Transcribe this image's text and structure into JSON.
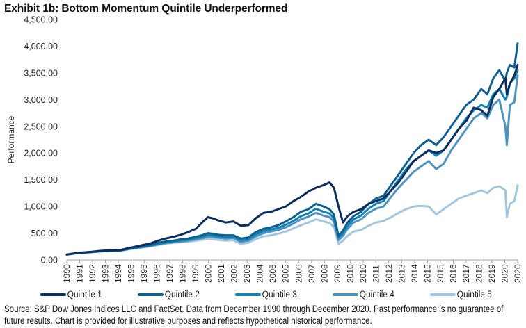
{
  "title": "Exhibit 1b: Bottom Momentum Quintile Underperformed",
  "source_note": "Source: S&P Dow Jones Indices LLC and FactSet. Data from December 1990 through December 2020. Past performance is no guarantee of future results. Chart is provided for illustrative purposes and reflects hypothetical historical performance.",
  "chart_data": {
    "type": "line",
    "title": "Exhibit 1b: Bottom Momentum Quintile Underperformed",
    "xlabel": "",
    "ylabel": "Performance",
    "ylim": [
      0,
      4500
    ],
    "yticks": [
      0,
      500,
      1000,
      1500,
      2000,
      2500,
      3000,
      3500,
      4000,
      4500
    ],
    "ytick_labels": [
      "0.00",
      "500.00",
      "1,000.00",
      "1,500.00",
      "2,000.00",
      "2,500.00",
      "3,000.00",
      "3,500.00",
      "4,000.00",
      "4,500.00"
    ],
    "xlim": [
      1990.92,
      2020.92
    ],
    "xtick_labels": [
      "1990",
      "1991",
      "1992",
      "1993",
      "1994",
      "1995",
      "1995",
      "1996",
      "1997",
      "1998",
      "1999",
      "2000",
      "2001",
      "2002",
      "2003",
      "2004",
      "2005",
      "2005",
      "2006",
      "2007",
      "2008",
      "2009",
      "2010",
      "2010",
      "2011",
      "2012",
      "2013",
      "2014",
      "2015",
      "2015",
      "2016",
      "2017",
      "2018",
      "2019",
      "2020",
      "2020"
    ],
    "grid": false,
    "legend_position": "bottom",
    "x": [
      1990.92,
      1991.5,
      1992,
      1992.5,
      1993,
      1993.5,
      1994,
      1994.5,
      1995,
      1995.5,
      1996,
      1996.5,
      1997,
      1997.5,
      1998,
      1998.5,
      1999,
      1999.5,
      2000,
      2000.3,
      2000.6,
      2001,
      2001.5,
      2002,
      2002.5,
      2003,
      2003.5,
      2004,
      2004.5,
      2005,
      2005.5,
      2006,
      2006.5,
      2007,
      2007.5,
      2008,
      2008.4,
      2008.7,
      2009,
      2009.3,
      2009.6,
      2010,
      2010.5,
      2011,
      2011.5,
      2012,
      2012.5,
      2013,
      2013.5,
      2014,
      2014.5,
      2015,
      2015.5,
      2016,
      2016.5,
      2017,
      2017.5,
      2018,
      2018.5,
      2018.9,
      2019.3,
      2019.7,
      2020.1,
      2020.2,
      2020.4,
      2020.7,
      2020.92
    ],
    "series": [
      {
        "name": "Quintile 1",
        "color": "#0d2d5e",
        "values": [
          100,
          125,
          140,
          150,
          165,
          175,
          180,
          185,
          220,
          250,
          280,
          310,
          360,
          400,
          430,
          470,
          520,
          580,
          720,
          800,
          780,
          740,
          700,
          720,
          640,
          650,
          780,
          880,
          900,
          950,
          1000,
          1100,
          1180,
          1280,
          1350,
          1400,
          1450,
          1350,
          1000,
          700,
          820,
          900,
          950,
          1050,
          1100,
          1150,
          1300,
          1450,
          1650,
          1850,
          1950,
          2050,
          2000,
          2050,
          2250,
          2450,
          2600,
          2850,
          2800,
          2700,
          3050,
          3200,
          3400,
          3100,
          3300,
          3450,
          3650
        ]
      },
      {
        "name": "Quintile 2",
        "color": "#0f5f8f",
        "values": [
          100,
          125,
          138,
          148,
          160,
          170,
          175,
          180,
          210,
          235,
          260,
          285,
          320,
          345,
          360,
          385,
          400,
          430,
          470,
          500,
          490,
          470,
          460,
          460,
          400,
          420,
          520,
          580,
          610,
          650,
          720,
          800,
          900,
          950,
          1050,
          1000,
          950,
          850,
          450,
          550,
          700,
          820,
          900,
          1050,
          1150,
          1200,
          1400,
          1600,
          1800,
          2000,
          2150,
          2250,
          2150,
          2300,
          2500,
          2700,
          2900,
          3000,
          3200,
          3100,
          3400,
          3550,
          3350,
          3500,
          3650,
          3600,
          4050
        ]
      },
      {
        "name": "Quintile 3",
        "color": "#1081b0",
        "values": [
          100,
          124,
          137,
          147,
          158,
          168,
          172,
          176,
          205,
          228,
          250,
          270,
          300,
          330,
          345,
          365,
          380,
          410,
          440,
          470,
          460,
          440,
          430,
          440,
          370,
          390,
          480,
          540,
          570,
          600,
          660,
          730,
          820,
          870,
          960,
          900,
          870,
          780,
          420,
          500,
          640,
          760,
          830,
          960,
          1050,
          1100,
          1300,
          1500,
          1700,
          1850,
          1950,
          2050,
          1950,
          2050,
          2250,
          2450,
          2650,
          2800,
          2900,
          2850,
          3100,
          3200,
          3000,
          3050,
          3300,
          3400,
          3550
        ]
      },
      {
        "name": "Quintile 4",
        "color": "#4d94c0",
        "values": [
          100,
          122,
          135,
          145,
          155,
          165,
          170,
          173,
          200,
          222,
          240,
          260,
          290,
          315,
          330,
          345,
          360,
          385,
          410,
          440,
          430,
          415,
          400,
          410,
          340,
          360,
          440,
          500,
          530,
          560,
          610,
          680,
          760,
          810,
          880,
          830,
          800,
          720,
          370,
          450,
          580,
          700,
          760,
          880,
          960,
          1000,
          1180,
          1350,
          1500,
          1650,
          1750,
          1850,
          1700,
          1800,
          2050,
          2250,
          2450,
          2650,
          2750,
          2650,
          2900,
          3000,
          2500,
          2150,
          2900,
          2950,
          3450
        ]
      },
      {
        "name": "Quintile 5",
        "color": "#a3c6df",
        "values": [
          100,
          122,
          134,
          143,
          153,
          162,
          167,
          170,
          196,
          217,
          235,
          255,
          280,
          305,
          318,
          330,
          340,
          360,
          380,
          400,
          390,
          375,
          360,
          370,
          300,
          320,
          390,
          440,
          460,
          490,
          530,
          590,
          650,
          700,
          760,
          720,
          690,
          620,
          300,
          360,
          450,
          530,
          560,
          640,
          700,
          730,
          800,
          880,
          950,
          1000,
          1010,
          1000,
          850,
          950,
          1050,
          1150,
          1200,
          1250,
          1300,
          1250,
          1350,
          1380,
          1300,
          800,
          1050,
          1100,
          1400
        ]
      }
    ]
  }
}
